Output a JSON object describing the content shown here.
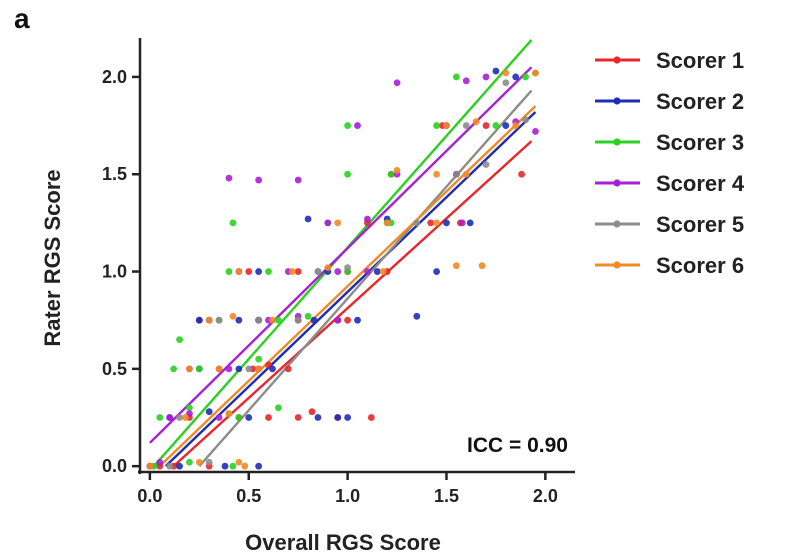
{
  "chart_data": {
    "type": "scatter",
    "panel_label": "a",
    "title": "",
    "xlabel": "Overall RGS Score",
    "ylabel": "Rater RGS Score",
    "xlim": [
      -0.05,
      2.15
    ],
    "ylim": [
      -0.03,
      2.2
    ],
    "x_ticks": [
      0.0,
      0.5,
      1.0,
      1.5,
      2.0
    ],
    "x_tick_labels": [
      "0.0",
      "0.5",
      "1.0",
      "1.5",
      "2.0"
    ],
    "y_ticks": [
      0.0,
      0.5,
      1.0,
      1.5,
      2.0
    ],
    "y_tick_labels": [
      "0.0",
      "0.5",
      "1.0",
      "1.5",
      "2.0"
    ],
    "grid": false,
    "legend_position": "right",
    "annotation": "ICC = 0.90",
    "series": [
      {
        "name": "Scorer 1",
        "color": "#e8262b",
        "fit": {
          "x": [
            0.12,
            1.93
          ],
          "y": [
            0.0,
            1.67
          ]
        },
        "points": [
          [
            0.05,
            0.0
          ],
          [
            0.12,
            0.0
          ],
          [
            0.3,
            0.0
          ],
          [
            0.2,
            0.25
          ],
          [
            0.45,
            0.25
          ],
          [
            0.6,
            0.25
          ],
          [
            0.75,
            0.25
          ],
          [
            0.82,
            0.28
          ],
          [
            0.95,
            0.25
          ],
          [
            1.12,
            0.25
          ],
          [
            0.35,
            0.5
          ],
          [
            0.52,
            0.5
          ],
          [
            0.6,
            0.52
          ],
          [
            0.7,
            0.5
          ],
          [
            0.25,
            0.75
          ],
          [
            0.55,
            0.75
          ],
          [
            0.75,
            0.75
          ],
          [
            0.95,
            0.75
          ],
          [
            1.0,
            0.75
          ],
          [
            0.5,
            1.0
          ],
          [
            0.75,
            1.0
          ],
          [
            1.0,
            1.0
          ],
          [
            1.2,
            1.0
          ],
          [
            1.1,
            1.25
          ],
          [
            1.42,
            1.25
          ],
          [
            1.57,
            1.25
          ],
          [
            1.22,
            1.5
          ],
          [
            1.55,
            1.5
          ],
          [
            1.88,
            1.5
          ],
          [
            1.48,
            1.75
          ],
          [
            1.7,
            1.75
          ]
        ]
      },
      {
        "name": "Scorer 2",
        "color": "#1f2cb8",
        "fit": {
          "x": [
            0.08,
            1.95
          ],
          "y": [
            0.0,
            1.82
          ]
        },
        "points": [
          [
            0.0,
            0.0
          ],
          [
            0.15,
            0.0
          ],
          [
            0.38,
            0.0
          ],
          [
            0.55,
            0.0
          ],
          [
            0.1,
            0.25
          ],
          [
            0.3,
            0.28
          ],
          [
            0.5,
            0.25
          ],
          [
            0.85,
            0.25
          ],
          [
            0.95,
            0.25
          ],
          [
            1.0,
            0.25
          ],
          [
            0.25,
            0.5
          ],
          [
            0.45,
            0.5
          ],
          [
            0.62,
            0.5
          ],
          [
            0.25,
            0.75
          ],
          [
            0.45,
            0.75
          ],
          [
            0.55,
            0.75
          ],
          [
            0.83,
            0.75
          ],
          [
            1.05,
            0.75
          ],
          [
            1.35,
            0.77
          ],
          [
            0.55,
            1.0
          ],
          [
            0.9,
            1.0
          ],
          [
            1.15,
            1.0
          ],
          [
            1.45,
            1.0
          ],
          [
            0.8,
            1.27
          ],
          [
            1.2,
            1.27
          ],
          [
            1.5,
            1.25
          ],
          [
            1.62,
            1.25
          ],
          [
            1.55,
            1.5
          ],
          [
            1.8,
            1.75
          ],
          [
            1.85,
            2.0
          ],
          [
            1.75,
            2.03
          ]
        ]
      },
      {
        "name": "Scorer 3",
        "color": "#2ad11f",
        "fit": {
          "x": [
            0.02,
            1.93
          ],
          "y": [
            0.0,
            2.19
          ]
        },
        "points": [
          [
            0.02,
            0.0
          ],
          [
            0.2,
            0.02
          ],
          [
            0.42,
            0.0
          ],
          [
            0.05,
            0.25
          ],
          [
            0.2,
            0.3
          ],
          [
            0.45,
            0.25
          ],
          [
            0.65,
            0.3
          ],
          [
            0.12,
            0.5
          ],
          [
            0.25,
            0.5
          ],
          [
            0.55,
            0.55
          ],
          [
            0.15,
            0.65
          ],
          [
            0.35,
            0.75
          ],
          [
            0.65,
            0.75
          ],
          [
            0.8,
            0.77
          ],
          [
            0.4,
            1.0
          ],
          [
            0.6,
            1.0
          ],
          [
            0.85,
            1.0
          ],
          [
            1.0,
            1.0
          ],
          [
            0.9,
            1.25
          ],
          [
            1.22,
            1.25
          ],
          [
            0.42,
            1.25
          ],
          [
            1.0,
            1.5
          ],
          [
            1.22,
            1.5
          ],
          [
            1.0,
            1.75
          ],
          [
            1.45,
            1.75
          ],
          [
            1.75,
            1.75
          ],
          [
            1.55,
            2.0
          ],
          [
            1.9,
            2.0
          ],
          [
            1.95,
            2.02
          ]
        ]
      },
      {
        "name": "Scorer 4",
        "color": "#a81fd6",
        "fit": {
          "x": [
            0.0,
            1.93
          ],
          "y": [
            0.12,
            2.05
          ]
        },
        "points": [
          [
            0.0,
            0.0
          ],
          [
            0.05,
            0.02
          ],
          [
            0.1,
            0.25
          ],
          [
            0.2,
            0.27
          ],
          [
            0.35,
            0.25
          ],
          [
            0.2,
            0.5
          ],
          [
            0.4,
            0.5
          ],
          [
            0.55,
            0.5
          ],
          [
            0.3,
            0.75
          ],
          [
            0.6,
            0.75
          ],
          [
            0.75,
            0.77
          ],
          [
            0.95,
            0.75
          ],
          [
            0.45,
            1.0
          ],
          [
            0.7,
            1.0
          ],
          [
            0.95,
            1.0
          ],
          [
            1.1,
            1.0
          ],
          [
            0.9,
            1.25
          ],
          [
            1.1,
            1.27
          ],
          [
            1.58,
            1.25
          ],
          [
            0.4,
            1.48
          ],
          [
            0.55,
            1.47
          ],
          [
            0.75,
            1.47
          ],
          [
            1.05,
            1.75
          ],
          [
            1.25,
            1.5
          ],
          [
            1.5,
            1.75
          ],
          [
            1.25,
            1.97
          ],
          [
            1.6,
            1.98
          ],
          [
            1.85,
            1.77
          ],
          [
            1.95,
            1.72
          ],
          [
            1.7,
            2.0
          ]
        ]
      },
      {
        "name": "Scorer 5",
        "color": "#8c8c8c",
        "fit": {
          "x": [
            0.25,
            1.93
          ],
          "y": [
            0.0,
            1.93
          ]
        },
        "points": [
          [
            0.1,
            0.0
          ],
          [
            0.3,
            0.02
          ],
          [
            0.15,
            0.25
          ],
          [
            0.4,
            0.27
          ],
          [
            0.5,
            0.5
          ],
          [
            0.35,
            0.75
          ],
          [
            0.55,
            0.75
          ],
          [
            0.75,
            0.75
          ],
          [
            0.85,
            1.0
          ],
          [
            1.0,
            1.02
          ],
          [
            1.2,
            1.25
          ],
          [
            1.35,
            1.25
          ],
          [
            1.55,
            1.5
          ],
          [
            1.7,
            1.55
          ],
          [
            1.6,
            1.75
          ],
          [
            1.8,
            1.97
          ],
          [
            1.9,
            1.78
          ]
        ]
      },
      {
        "name": "Scorer 6",
        "color": "#f08a24",
        "fit": {
          "x": [
            0.05,
            1.95
          ],
          "y": [
            0.0,
            1.85
          ]
        },
        "points": [
          [
            0.0,
            0.0
          ],
          [
            0.25,
            0.02
          ],
          [
            0.45,
            0.02
          ],
          [
            0.48,
            0.0
          ],
          [
            0.18,
            0.25
          ],
          [
            0.4,
            0.27
          ],
          [
            0.2,
            0.5
          ],
          [
            0.35,
            0.5
          ],
          [
            0.55,
            0.5
          ],
          [
            0.3,
            0.75
          ],
          [
            0.42,
            0.77
          ],
          [
            0.62,
            0.75
          ],
          [
            0.45,
            1.0
          ],
          [
            0.72,
            1.0
          ],
          [
            0.9,
            1.02
          ],
          [
            1.18,
            1.0
          ],
          [
            1.55,
            1.03
          ],
          [
            1.68,
            1.03
          ],
          [
            0.95,
            1.25
          ],
          [
            1.2,
            1.25
          ],
          [
            1.45,
            1.25
          ],
          [
            1.25,
            1.52
          ],
          [
            1.45,
            1.5
          ],
          [
            1.6,
            1.5
          ],
          [
            1.5,
            1.75
          ],
          [
            1.65,
            1.77
          ],
          [
            1.85,
            1.75
          ],
          [
            1.8,
            2.02
          ],
          [
            1.95,
            2.02
          ]
        ]
      }
    ]
  }
}
